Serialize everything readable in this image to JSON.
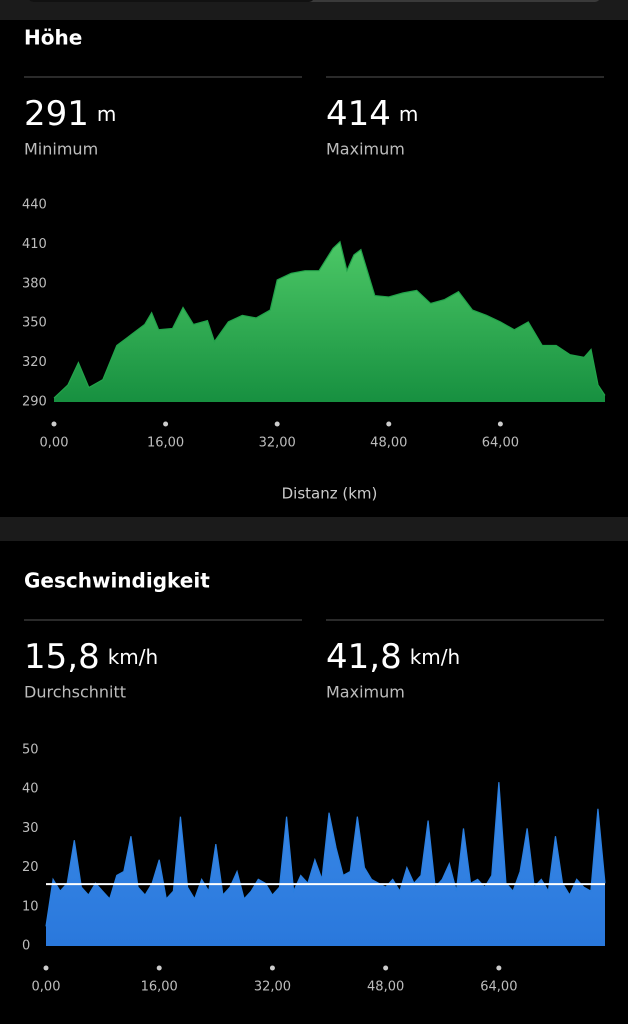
{
  "sections": [
    {
      "title": "Höhe",
      "stats": [
        {
          "value": 291,
          "unit": "m",
          "label": "Minimum"
        },
        {
          "value": 414,
          "unit": "m",
          "label": "Maximum"
        }
      ]
    },
    {
      "title": "Geschwindigkeit",
      "stats": [
        {
          "value": "15,8",
          "unit": "km/h",
          "label": "Durchschnitt"
        },
        {
          "value": "41,8",
          "unit": "km/h",
          "label": "Maximum"
        }
      ]
    }
  ],
  "chart_data": [
    {
      "type": "area",
      "x_label": "Distanz (km)",
      "x": [
        0,
        2,
        3.5,
        5,
        7,
        9,
        11,
        13,
        14,
        15,
        17,
        18.5,
        20,
        22,
        23,
        25,
        27,
        29,
        31,
        32,
        34,
        36,
        38,
        40,
        41,
        42,
        43,
        44,
        46,
        48,
        50,
        52,
        54,
        56,
        58,
        60,
        62,
        64,
        66,
        68,
        70,
        72,
        74,
        76,
        77,
        78,
        79
      ],
      "series": [
        {
          "color": "#22a34a",
          "values": [
            293,
            303,
            320,
            301,
            307,
            333,
            341,
            349,
            358,
            345,
            346,
            362,
            349,
            352,
            336,
            351,
            356,
            354,
            360,
            383,
            388,
            390,
            390,
            407,
            412,
            390,
            402,
            406,
            371,
            370,
            373,
            375,
            365,
            368,
            374,
            360,
            356,
            351,
            345,
            351,
            333,
            333,
            326,
            324,
            330,
            303,
            295
          ]
        }
      ],
      "xlim": [
        0,
        79
      ],
      "xticks": [
        {
          "value": 0,
          "label": "0,00"
        },
        {
          "value": 16,
          "label": "16,00"
        },
        {
          "value": 32,
          "label": "32,00"
        },
        {
          "value": 48,
          "label": "48,00"
        },
        {
          "value": 64,
          "label": "64,00"
        }
      ],
      "ylim": [
        290,
        440
      ],
      "yticks": [
        290,
        320,
        350,
        380,
        410,
        440
      ]
    },
    {
      "type": "area",
      "x": [
        0,
        1,
        2,
        3,
        4,
        5,
        6,
        7,
        8,
        9,
        10,
        11,
        12,
        13,
        14,
        15,
        16,
        17,
        18,
        19,
        20,
        21,
        22,
        23,
        24,
        25,
        26,
        27,
        28,
        29,
        30,
        31,
        32,
        33,
        34,
        35,
        36,
        37,
        38,
        39,
        40,
        41,
        42,
        43,
        44,
        45,
        46,
        47,
        48,
        49,
        50,
        51,
        52,
        53,
        54,
        55,
        56,
        57,
        58,
        59,
        60,
        61,
        62,
        63,
        64,
        65,
        66,
        67,
        68,
        69,
        70,
        71,
        72,
        73,
        74,
        75,
        76,
        77,
        78,
        79
      ],
      "series": [
        {
          "color": "#2b7fe0",
          "values": [
            5,
            17,
            14,
            16,
            27,
            15,
            13,
            16,
            14,
            12,
            18,
            19,
            28,
            15,
            13,
            16,
            22,
            12,
            14,
            33,
            15,
            12,
            17,
            14,
            26,
            13,
            15,
            19,
            12,
            14,
            17,
            16,
            13,
            15,
            33,
            14,
            18,
            16,
            22,
            17,
            34,
            25,
            18,
            19,
            33,
            20,
            17,
            16,
            15,
            17,
            14,
            20,
            16,
            18,
            32,
            15,
            17,
            21,
            14,
            30,
            16,
            17,
            15,
            18,
            41.8,
            16,
            14,
            19,
            30,
            15,
            17,
            14,
            28,
            16,
            13,
            17,
            15,
            14,
            35,
            16
          ]
        }
      ],
      "reference_line": {
        "value": 15.8,
        "color": "#ffffff"
      },
      "xlim": [
        0,
        79
      ],
      "xticks": [
        {
          "value": 0,
          "label": "0,00"
        },
        {
          "value": 16,
          "label": "16,00"
        },
        {
          "value": 32,
          "label": "32,00"
        },
        {
          "value": 48,
          "label": "48,00"
        },
        {
          "value": 64,
          "label": "64,00"
        }
      ],
      "ylim": [
        0,
        50
      ],
      "yticks": [
        0,
        10,
        20,
        30,
        40,
        50
      ]
    }
  ]
}
